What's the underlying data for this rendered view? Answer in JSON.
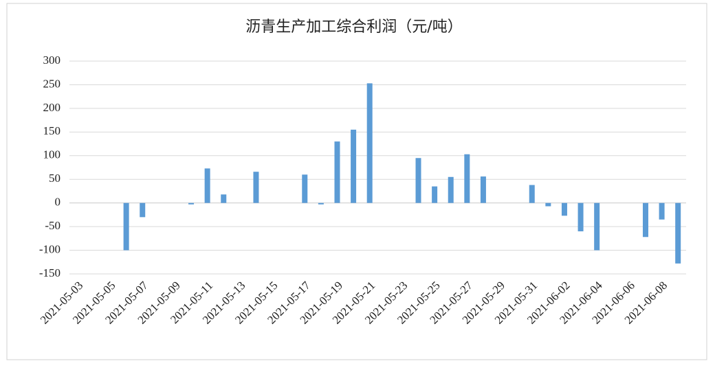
{
  "chart_data": {
    "type": "bar",
    "title": "沥青生产加工综合利润（元/吨）",
    "categories": [
      "2021-05-03",
      null,
      "2021-05-05",
      null,
      "2021-05-07",
      null,
      "2021-05-09",
      null,
      "2021-05-11",
      null,
      "2021-05-13",
      null,
      "2021-05-15",
      null,
      "2021-05-17",
      null,
      "2021-05-19",
      null,
      "2021-05-21",
      null,
      "2021-05-23",
      null,
      "2021-05-25",
      null,
      "2021-05-27",
      null,
      "2021-05-29",
      null,
      "2021-05-31",
      null,
      "2021-06-02",
      null,
      "2021-06-04",
      null,
      "2021-06-06",
      null,
      "2021-06-08",
      null
    ],
    "values": [
      null,
      null,
      null,
      -100,
      -30,
      null,
      null,
      -3,
      73,
      18,
      null,
      66,
      null,
      null,
      60,
      -3,
      130,
      155,
      253,
      null,
      null,
      95,
      35,
      55,
      103,
      56,
      null,
      null,
      38,
      -7,
      -27,
      -60,
      -100,
      null,
      null,
      -72,
      -35,
      -128
    ],
    "color": "#5b9bd5",
    "ylim": [
      -150,
      300
    ],
    "yticks": [
      -150,
      -100,
      -50,
      0,
      50,
      100,
      150,
      200,
      250,
      300
    ],
    "grid": true
  }
}
